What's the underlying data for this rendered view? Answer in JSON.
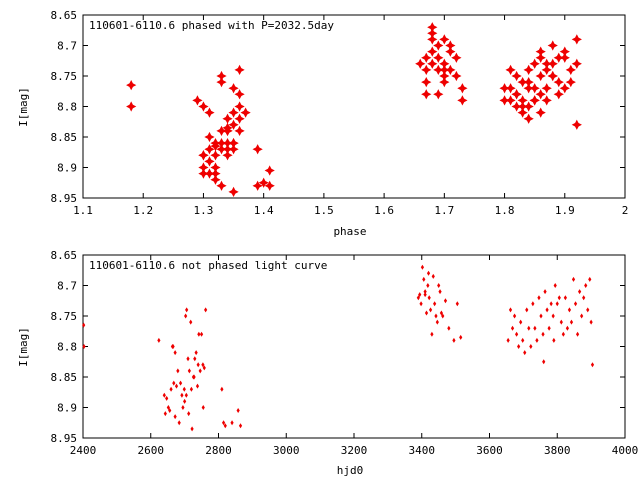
{
  "colors": {
    "points": "#ee0000",
    "frame": "#000000"
  },
  "chart_data": [
    {
      "type": "scatter",
      "title": "110601-6110.6 phased with P=2032.5day",
      "xlabel": "phase",
      "ylabel": "I[mag]",
      "xlim": [
        1.1,
        2.0
      ],
      "ylim": [
        8.65,
        8.95
      ],
      "y_inverted": true,
      "grid": false,
      "x_ticks": [
        "1.1",
        "1.2",
        "1.3",
        "1.4",
        "1.5",
        "1.6",
        "1.7",
        "1.8",
        "1.9",
        "2"
      ],
      "y_ticks": [
        "8.65",
        "8.7",
        "8.75",
        "8.8",
        "8.85",
        "8.9",
        "8.95"
      ],
      "marker": "star",
      "x": [
        1.18,
        1.18,
        1.29,
        1.3,
        1.3,
        1.3,
        1.31,
        1.31,
        1.31,
        1.32,
        1.32,
        1.32,
        1.33,
        1.33,
        1.33,
        1.33,
        1.34,
        1.34,
        1.34,
        1.34,
        1.34,
        1.35,
        1.35,
        1.35,
        1.35,
        1.35,
        1.36,
        1.36,
        1.36,
        1.36,
        1.36,
        1.32,
        1.33,
        1.35,
        1.3,
        1.31,
        1.32,
        1.31,
        1.3,
        1.33,
        1.34,
        1.39,
        1.39,
        1.4,
        1.41,
        1.41,
        1.35,
        1.37,
        1.34,
        1.32,
        1.67,
        1.67,
        1.67,
        1.68,
        1.68,
        1.68,
        1.68,
        1.69,
        1.69,
        1.69,
        1.69,
        1.7,
        1.7,
        1.7,
        1.7,
        1.71,
        1.71,
        1.71,
        1.72,
        1.72,
        1.73,
        1.73,
        1.68,
        1.67,
        1.66,
        1.7,
        1.8,
        1.81,
        1.81,
        1.82,
        1.82,
        1.82,
        1.83,
        1.83,
        1.83,
        1.84,
        1.84,
        1.84,
        1.85,
        1.85,
        1.85,
        1.86,
        1.86,
        1.86,
        1.86,
        1.87,
        1.87,
        1.87,
        1.88,
        1.88,
        1.88,
        1.89,
        1.89,
        1.89,
        1.9,
        1.9,
        1.91,
        1.91,
        1.92,
        1.92,
        1.92,
        1.8,
        1.81,
        1.82,
        1.84,
        1.85,
        1.86,
        1.88,
        1.9,
        1.84,
        1.87,
        1.83
      ],
      "y": [
        8.765,
        8.8,
        8.79,
        8.88,
        8.91,
        8.8,
        8.85,
        8.87,
        8.89,
        8.86,
        8.88,
        8.91,
        8.84,
        8.87,
        8.86,
        8.93,
        8.82,
        8.84,
        8.86,
        8.87,
        8.88,
        8.77,
        8.81,
        8.83,
        8.86,
        8.87,
        8.74,
        8.8,
        8.82,
        8.84,
        8.78,
        8.9,
        8.76,
        8.94,
        8.9,
        8.91,
        8.92,
        8.81,
        8.88,
        8.75,
        8.84,
        8.87,
        8.93,
        8.925,
        8.905,
        8.93,
        8.86,
        8.81,
        8.835,
        8.865,
        8.72,
        8.74,
        8.76,
        8.67,
        8.69,
        8.71,
        8.73,
        8.7,
        8.72,
        8.74,
        8.78,
        8.69,
        8.73,
        8.75,
        8.76,
        8.7,
        8.71,
        8.74,
        8.75,
        8.72,
        8.77,
        8.79,
        8.68,
        8.78,
        8.73,
        8.74,
        8.79,
        8.74,
        8.77,
        8.75,
        8.78,
        8.8,
        8.76,
        8.79,
        8.81,
        8.74,
        8.77,
        8.8,
        8.73,
        8.77,
        8.79,
        8.72,
        8.75,
        8.78,
        8.71,
        8.74,
        8.77,
        8.73,
        8.75,
        8.7,
        8.73,
        8.72,
        8.76,
        8.78,
        8.72,
        8.77,
        8.74,
        8.76,
        8.69,
        8.73,
        8.83,
        8.77,
        8.79,
        8.78,
        8.76,
        8.79,
        8.81,
        8.75,
        8.71,
        8.82,
        8.79,
        8.8
      ]
    },
    {
      "type": "scatter",
      "title": "110601-6110.6 not phased light curve",
      "xlabel": "hjd0",
      "ylabel": "I[mag]",
      "xlim": [
        2400,
        4000
      ],
      "ylim": [
        8.65,
        8.95
      ],
      "y_inverted": true,
      "grid": false,
      "x_ticks": [
        "2400",
        "2600",
        "2800",
        "3000",
        "3200",
        "3400",
        "3600",
        "3800",
        "4000"
      ],
      "y_ticks": [
        "8.65",
        "8.7",
        "8.75",
        "8.8",
        "8.85",
        "8.9",
        "8.95"
      ],
      "marker": "diamond",
      "x": [
        2402,
        2403,
        2624,
        2640,
        2643,
        2647,
        2652,
        2656,
        2660,
        2664,
        2668,
        2672,
        2676,
        2680,
        2684,
        2688,
        2692,
        2695,
        2699,
        2703,
        2706,
        2710,
        2714,
        2718,
        2722,
        2726,
        2730,
        2734,
        2738,
        2742,
        2746,
        2750,
        2754,
        2758,
        2762,
        2666,
        2672,
        2700,
        2705,
        2712,
        2720,
        2728,
        2740,
        2755,
        2810,
        2815,
        2820,
        2840,
        2858,
        2865,
        3390,
        3394,
        3398,
        3402,
        3406,
        3410,
        3414,
        3418,
        3422,
        3426,
        3430,
        3434,
        3438,
        3442,
        3446,
        3450,
        3454,
        3458,
        3462,
        3470,
        3480,
        3495,
        3505,
        3515,
        3410,
        3420,
        3655,
        3662,
        3668,
        3674,
        3680,
        3686,
        3692,
        3698,
        3704,
        3710,
        3716,
        3722,
        3728,
        3734,
        3740,
        3746,
        3752,
        3758,
        3764,
        3770,
        3776,
        3782,
        3788,
        3794,
        3800,
        3806,
        3812,
        3818,
        3824,
        3830,
        3836,
        3842,
        3848,
        3854,
        3860,
        3866,
        3872,
        3878,
        3884,
        3890,
        3896,
        3900,
        3904,
        3760,
        3790
      ],
      "y": [
        8.765,
        8.8,
        8.79,
        8.88,
        8.91,
        8.885,
        8.9,
        8.905,
        8.87,
        8.8,
        8.86,
        8.915,
        8.865,
        8.84,
        8.925,
        8.86,
        8.88,
        8.9,
        8.87,
        8.75,
        8.74,
        8.82,
        8.84,
        8.76,
        8.935,
        8.85,
        8.82,
        8.81,
        8.865,
        8.78,
        8.84,
        8.78,
        8.83,
        8.835,
        8.74,
        8.8,
        8.81,
        8.89,
        8.88,
        8.91,
        8.87,
        8.85,
        8.83,
        8.9,
        8.87,
        8.925,
        8.93,
        8.925,
        8.905,
        8.93,
        8.72,
        8.715,
        8.73,
        8.67,
        8.69,
        8.71,
        8.745,
        8.7,
        8.72,
        8.74,
        8.78,
        8.685,
        8.73,
        8.75,
        8.76,
        8.7,
        8.71,
        8.745,
        8.75,
        8.725,
        8.77,
        8.79,
        8.73,
        8.785,
        8.715,
        8.68,
        8.79,
        8.74,
        8.77,
        8.75,
        8.78,
        8.8,
        8.76,
        8.79,
        8.81,
        8.74,
        8.77,
        8.8,
        8.73,
        8.77,
        8.79,
        8.72,
        8.75,
        8.78,
        8.71,
        8.74,
        8.77,
        8.73,
        8.75,
        8.7,
        8.73,
        8.72,
        8.76,
        8.78,
        8.72,
        8.77,
        8.74,
        8.76,
        8.69,
        8.73,
        8.78,
        8.71,
        8.75,
        8.72,
        8.7,
        8.74,
        8.69,
        8.76,
        8.83,
        8.825,
        8.79
      ]
    }
  ]
}
